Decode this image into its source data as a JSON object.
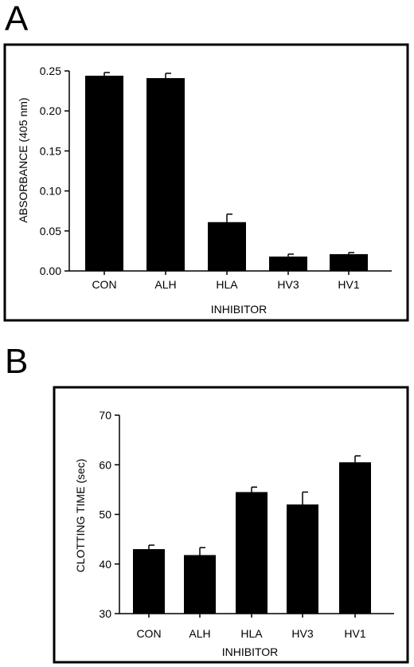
{
  "panels": [
    {
      "letter": "A"
    },
    {
      "letter": "B"
    }
  ],
  "chart_data": [
    {
      "type": "bar",
      "panel": "A",
      "categories": [
        "CON",
        "ALH",
        "HLA",
        "HV3",
        "HV1"
      ],
      "values": [
        0.244,
        0.241,
        0.061,
        0.018,
        0.021
      ],
      "errors": [
        0.004,
        0.006,
        0.01,
        0.003,
        0.002
      ],
      "xlabel": "INHIBITOR",
      "ylabel": "ABSORBANCE (405 nm)",
      "ylim": [
        0,
        0.25
      ],
      "yticks": [
        "0.00",
        "0.05",
        "0.10",
        "0.15",
        "0.20",
        "0.25"
      ],
      "grid": false
    },
    {
      "type": "bar",
      "panel": "B",
      "categories": [
        "CON",
        "ALH",
        "HLA",
        "HV3",
        "HV1"
      ],
      "values": [
        43.0,
        41.8,
        54.5,
        52.0,
        60.5
      ],
      "errors": [
        0.8,
        1.5,
        1.0,
        2.5,
        1.3
      ],
      "xlabel": "INHIBITOR",
      "ylabel": "CLOTTING TIME (sec)",
      "ylim": [
        30,
        70
      ],
      "yticks": [
        "30",
        "40",
        "50",
        "60",
        "70"
      ],
      "grid": false
    }
  ]
}
